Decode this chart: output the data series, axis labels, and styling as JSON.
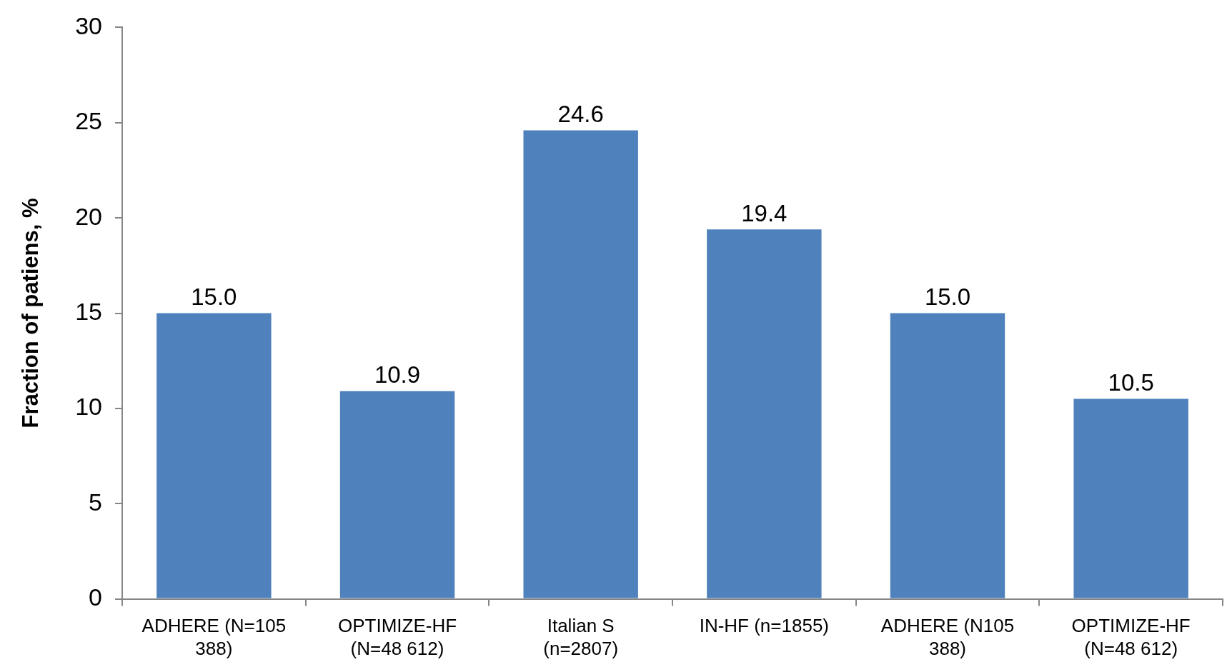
{
  "chart_data": {
    "type": "bar",
    "ylabel": "Fraction of patiens, %",
    "categories": [
      "ADHERE (N=105 388)",
      "OPTIMIZE-HF (N=48 612)",
      "Italian S (n=2807)",
      "IN-HF (n=1855)",
      "ADHERE (N105 388)",
      "OPTIMIZE-HF (N=48 612)"
    ],
    "values": [
      15.0,
      10.9,
      24.6,
      19.4,
      15.0,
      10.5
    ],
    "value_labels": [
      "15.0",
      "10.9",
      "24.6",
      "19.4",
      "15.0",
      "10.5"
    ],
    "color": "#4f81bd",
    "ylim": [
      0,
      30
    ],
    "yticks": [
      0,
      5,
      10,
      15,
      20,
      25,
      30
    ],
    "grid": false,
    "legend": false
  }
}
